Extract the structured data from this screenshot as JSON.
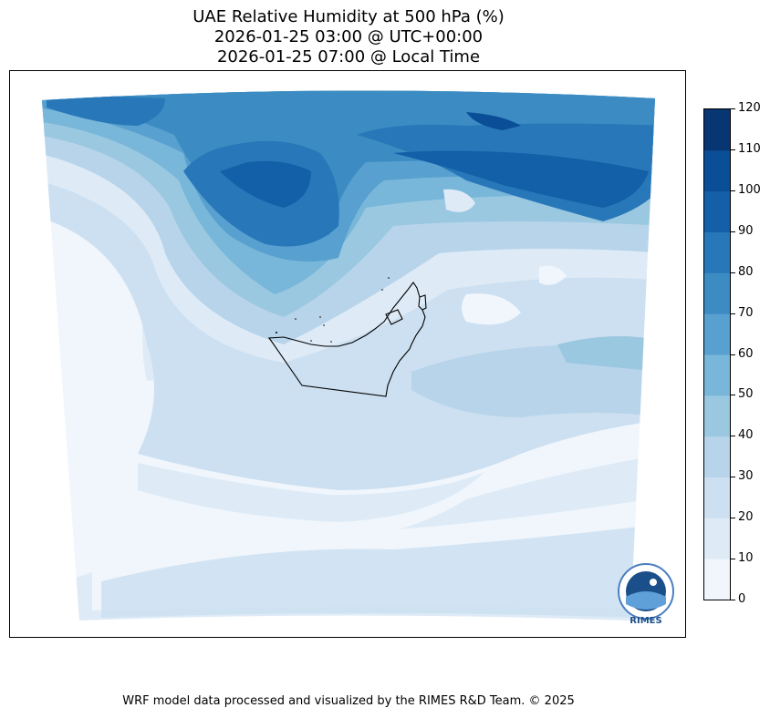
{
  "title": {
    "line1": "UAE Relative Humidity at 500 hPa (%)",
    "line2": "2026-01-25 03:00 @ UTC+00:00",
    "line3": "2026-01-25 07:00 @ Local Time"
  },
  "colorbar": {
    "levels": [
      0,
      10,
      20,
      30,
      40,
      50,
      60,
      70,
      80,
      90,
      100,
      110,
      120
    ],
    "labels": [
      "0",
      "10",
      "20",
      "30",
      "40",
      "50",
      "60",
      "70",
      "80",
      "90",
      "100",
      "110",
      "120"
    ],
    "colors": [
      "#f0f6fc",
      "#deebf7",
      "#cde0f1",
      "#b7d4ea",
      "#9ac8e0",
      "#78b7d9",
      "#58a0cf",
      "#3c8cc3",
      "#2878b9",
      "#135fa8",
      "#0b4e98",
      "#083673"
    ]
  },
  "logo": {
    "text": "RIMES"
  },
  "footer": {
    "text": "WRF model data processed and visualized by the RIMES R&D Team. © 2025"
  }
}
